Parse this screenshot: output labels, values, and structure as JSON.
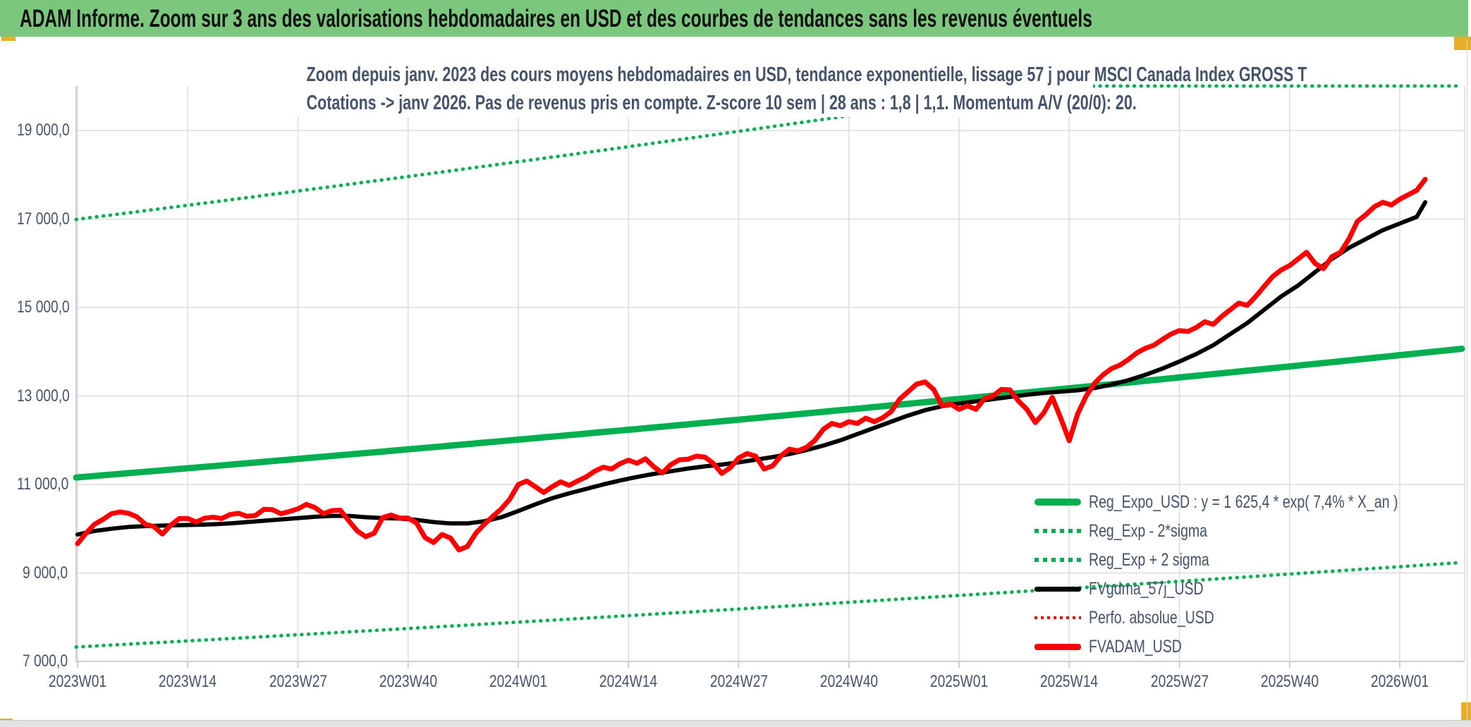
{
  "window": {
    "title": "ADAM Informe. Zoom sur 3 ans des valorisations hebdomadaires en USD et des courbes de tendances sans les revenus éventuels"
  },
  "colors": {
    "header_green": "#7CC77E",
    "series_green": "#00B050",
    "series_red": "#FF0000",
    "series_black": "#000000",
    "text_slate": "#44546A",
    "grid": "#D9DCE1",
    "axis": "#BFBFBF",
    "gold": "#E8AE26"
  },
  "chart_data": {
    "type": "line",
    "title_lines": [
      "Zoom depuis janv. 2023 des cours moyens hebdomadaires en USD, tendance exponentielle, lissage 57 j pour MSCI Canada Index GROSS T",
      "Cotations -> janv 2026. Pas de revenus pris en compte. Z-score 10 sem | 28 ans : 1,8 | 1,1. Momentum A/V (20/0): 20."
    ],
    "x_tick_labels": [
      "2023W01",
      "2023W14",
      "2023W27",
      "2023W40",
      "2024W01",
      "2024W14",
      "2024W27",
      "2024W40",
      "2025W01",
      "2025W14",
      "2025W27",
      "2025W40",
      "2026W01"
    ],
    "y_tick_labels": [
      "7 000,0",
      "9 000,0",
      "11 000,0",
      "13 000,0",
      "15 000,0",
      "17 000,0",
      "19 000,0"
    ],
    "y_axis": {
      "min": 7000,
      "labeled_max": 19000,
      "plot_max": 20000,
      "major_unit": 2000,
      "grid": true
    },
    "x_axis": {
      "weeks_per_tick": 13,
      "first_week": "2023W01",
      "last_label": "2026W01"
    },
    "legend_position": "inside-bottom-right",
    "legend": [
      {
        "label": "Reg_Expo_USD : y = 1 625,4 * exp( 7,4% *  X_an )",
        "swatch": "solid-green"
      },
      {
        "label": "Reg_Exp - 2*sigma",
        "swatch": "dot-green"
      },
      {
        "label": "Reg_Exp + 2 sigma",
        "swatch": "dot-green"
      },
      {
        "label": "FVgdma_57j_USD",
        "swatch": "solid-black"
      },
      {
        "label": "Perfo. absolue_USD",
        "swatch": "dot-red"
      },
      {
        "label": "FVADAM_USD",
        "swatch": "solid-red"
      }
    ],
    "regression": {
      "legend_equation": "y = 1 625,4 * exp( 7,4% *  X_an )",
      "a": 1625.4,
      "annual_rate_pct": 7.4,
      "value_at_2023W01": 11160,
      "sigma_ratio": 1.523,
      "upper_band_clipped_at_plot_max": true
    },
    "series": {
      "FVADAM_USD": {
        "color": "#FF0000",
        "style": "solid",
        "step_weeks": 1,
        "values": [
          9660,
          9900,
          10100,
          10210,
          10340,
          10380,
          10350,
          10270,
          10100,
          10050,
          9880,
          10080,
          10230,
          10230,
          10150,
          10240,
          10260,
          10230,
          10320,
          10350,
          10280,
          10300,
          10440,
          10430,
          10340,
          10390,
          10450,
          10550,
          10480,
          10340,
          10410,
          10420,
          10180,
          9950,
          9820,
          9900,
          10250,
          10310,
          10240,
          10240,
          10130,
          9800,
          9690,
          9870,
          9790,
          9520,
          9600,
          9900,
          10100,
          10280,
          10450,
          10670,
          11000,
          11080,
          10950,
          10820,
          10950,
          11060,
          10980,
          11080,
          11170,
          11300,
          11390,
          11350,
          11470,
          11550,
          11480,
          11580,
          11400,
          11260,
          11450,
          11560,
          11570,
          11640,
          11620,
          11480,
          11250,
          11380,
          11600,
          11700,
          11640,
          11350,
          11420,
          11650,
          11800,
          11760,
          11840,
          12000,
          12250,
          12380,
          12330,
          12420,
          12380,
          12500,
          12420,
          12510,
          12650,
          12930,
          13100,
          13270,
          13320,
          13150,
          12780,
          12820,
          12700,
          12780,
          12700,
          12940,
          13000,
          13150,
          13140,
          12890,
          12700,
          12400,
          12620,
          12970,
          12500,
          11990,
          12600,
          13000,
          13290,
          13480,
          13620,
          13700,
          13830,
          13980,
          14080,
          14150,
          14280,
          14400,
          14480,
          14460,
          14550,
          14680,
          14620,
          14800,
          14950,
          15100,
          15050,
          15250,
          15480,
          15700,
          15850,
          15950,
          16100,
          16250,
          16000,
          15880,
          16150,
          16250,
          16550,
          16950,
          17100,
          17280,
          17380,
          17320,
          17450,
          17550,
          17650,
          17900
        ]
      },
      "FVgdma_57j_USD": {
        "color": "#000000",
        "style": "solid",
        "step_weeks": 2,
        "values": [
          9870,
          9950,
          10000,
          10040,
          10060,
          10070,
          10080,
          10090,
          10100,
          10120,
          10150,
          10180,
          10210,
          10240,
          10270,
          10290,
          10290,
          10260,
          10240,
          10230,
          10200,
          10150,
          10120,
          10120,
          10170,
          10260,
          10400,
          10550,
          10690,
          10800,
          10900,
          11000,
          11090,
          11170,
          11240,
          11300,
          11360,
          11410,
          11450,
          11500,
          11560,
          11620,
          11690,
          11780,
          11880,
          12000,
          12140,
          12280,
          12420,
          12560,
          12680,
          12770,
          12830,
          12880,
          12930,
          12980,
          13030,
          13070,
          13100,
          13130,
          13180,
          13260,
          13360,
          13480,
          13620,
          13780,
          13950,
          14150,
          14400,
          14650,
          14950,
          15250,
          15500,
          15800,
          16100,
          16350,
          16550,
          16750,
          16900,
          17050,
          17380
        ]
      },
      "Perfo_absolue_USD": {
        "color": "#FF0000",
        "style": "dotted",
        "same_values_as": "FVADAM_USD"
      }
    }
  }
}
